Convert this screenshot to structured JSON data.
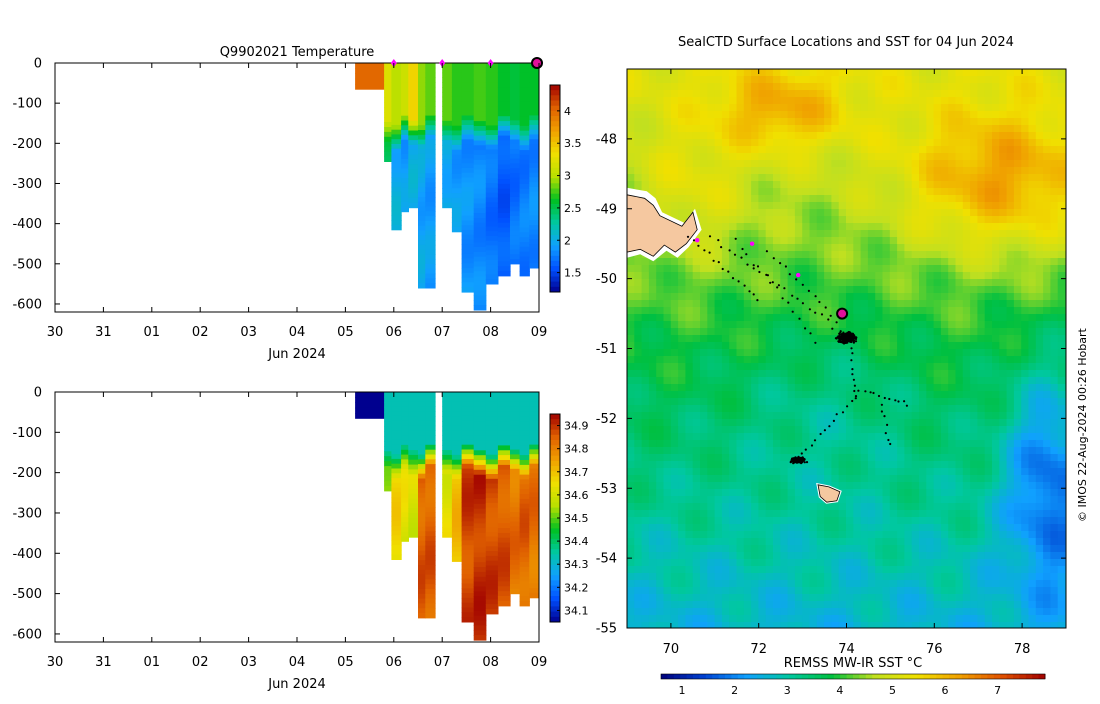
{
  "colors": {
    "temp_scale": [
      "#00008f",
      "#0050ff",
      "#10a0ff",
      "#00c8a0",
      "#00c020",
      "#b8e000",
      "#f0e000",
      "#f0a000",
      "#e06000",
      "#a00000"
    ],
    "sst_scale": [
      "#00007a",
      "#0040d0",
      "#10a0ff",
      "#00c8a0",
      "#00c040",
      "#c0e020",
      "#f0e000",
      "#f0a000",
      "#e05000",
      "#a00000"
    ],
    "land": "#f5c8a0",
    "track_marker": "#ff00ff",
    "current_marker": "#e0109a"
  },
  "chart_data": [
    {
      "id": "temperature_section",
      "type": "heatmap",
      "title": "Q9902021  Temperature",
      "xlabel": "Jun 2024",
      "x_ticks": [
        "30",
        "31",
        "01",
        "02",
        "03",
        "04",
        "05",
        "06",
        "07",
        "08",
        "09"
      ],
      "y_ticks": [
        "0",
        "-100",
        "-200",
        "-300",
        "-400",
        "-500",
        "-600"
      ],
      "ylim": [
        -620,
        0
      ],
      "colorbar_ticks": [
        "4",
        "3.5",
        "3",
        "2.5",
        "2",
        "1.5"
      ],
      "colorbar_range": [
        1.2,
        4.4
      ],
      "profile_top_markers": [
        "06",
        "07",
        "08"
      ],
      "profiles": [
        {
          "t": 5.2,
          "t2": 5.8,
          "depth": 65,
          "mixed": 4.0,
          "deep": 4.0
        },
        {
          "t": 5.8,
          "t2": 5.95,
          "depth": 245,
          "mixed": 3.2,
          "deep": 2.5
        },
        {
          "t": 5.95,
          "t2": 6.15,
          "depth": 415,
          "mixed": 3.0,
          "deep": 2.0
        },
        {
          "t": 6.15,
          "t2": 6.3,
          "depth": 370,
          "mixed": 3.1,
          "deep": 1.9
        },
        {
          "t": 6.3,
          "t2": 6.5,
          "depth": 360,
          "mixed": 3.4,
          "deep": 2.0
        },
        {
          "t": 6.5,
          "t2": 6.65,
          "depth": 560,
          "mixed": 2.9,
          "deep": 1.95
        },
        {
          "t": 6.65,
          "t2": 6.85,
          "depth": 560,
          "mixed": 2.8,
          "deep": 1.9
        },
        {
          "t": 7.0,
          "t2": 7.2,
          "depth": 360,
          "mixed": 2.8,
          "deep": 2.0
        },
        {
          "t": 7.2,
          "t2": 7.4,
          "depth": 420,
          "mixed": 2.7,
          "deep": 1.9
        },
        {
          "t": 7.4,
          "t2": 7.65,
          "depth": 570,
          "mixed": 2.7,
          "deep": 1.85
        },
        {
          "t": 7.65,
          "t2": 7.9,
          "depth": 615,
          "mixed": 2.75,
          "deep": 1.8
        },
        {
          "t": 7.9,
          "t2": 8.15,
          "depth": 550,
          "mixed": 2.7,
          "deep": 1.7
        },
        {
          "t": 8.15,
          "t2": 8.4,
          "depth": 530,
          "mixed": 2.6,
          "deep": 1.6
        },
        {
          "t": 8.4,
          "t2": 8.6,
          "depth": 500,
          "mixed": 2.55,
          "deep": 1.7
        },
        {
          "t": 8.6,
          "t2": 8.8,
          "depth": 530,
          "mixed": 2.6,
          "deep": 1.75
        },
        {
          "t": 8.8,
          "t2": 8.98,
          "depth": 510,
          "mixed": 2.6,
          "deep": 1.8
        }
      ]
    },
    {
      "id": "salinity_section",
      "type": "heatmap",
      "title": "",
      "xlabel": "Jun 2024",
      "x_ticks": [
        "30",
        "31",
        "01",
        "02",
        "03",
        "04",
        "05",
        "06",
        "07",
        "08",
        "09"
      ],
      "y_ticks": [
        "0",
        "-100",
        "-200",
        "-300",
        "-400",
        "-500",
        "-600"
      ],
      "ylim": [
        -620,
        0
      ],
      "colorbar_ticks": [
        "34.9",
        "34.8",
        "34.7",
        "34.6",
        "34.5",
        "34.4",
        "34.3",
        "34.2",
        "34.1"
      ],
      "colorbar_range": [
        34.05,
        34.95
      ],
      "profiles": [
        {
          "t": 5.2,
          "t2": 5.8,
          "depth": 65,
          "mixed": 34.05,
          "deep": 34.05
        },
        {
          "t": 5.8,
          "t2": 5.95,
          "depth": 245,
          "mixed": 34.33,
          "deep": 34.55
        },
        {
          "t": 5.95,
          "t2": 6.15,
          "depth": 415,
          "mixed": 34.33,
          "deep": 34.66
        },
        {
          "t": 6.15,
          "t2": 6.3,
          "depth": 370,
          "mixed": 34.33,
          "deep": 34.62
        },
        {
          "t": 6.3,
          "t2": 6.5,
          "depth": 360,
          "mixed": 34.33,
          "deep": 34.6
        },
        {
          "t": 6.5,
          "t2": 6.65,
          "depth": 560,
          "mixed": 34.33,
          "deep": 34.85
        },
        {
          "t": 6.65,
          "t2": 6.85,
          "depth": 560,
          "mixed": 34.33,
          "deep": 34.85
        },
        {
          "t": 7.0,
          "t2": 7.2,
          "depth": 360,
          "mixed": 34.33,
          "deep": 34.62
        },
        {
          "t": 7.2,
          "t2": 7.4,
          "depth": 420,
          "mixed": 34.33,
          "deep": 34.7
        },
        {
          "t": 7.4,
          "t2": 7.65,
          "depth": 570,
          "mixed": 34.33,
          "deep": 34.88
        },
        {
          "t": 7.65,
          "t2": 7.9,
          "depth": 615,
          "mixed": 34.33,
          "deep": 34.9
        },
        {
          "t": 7.9,
          "t2": 8.15,
          "depth": 550,
          "mixed": 34.33,
          "deep": 34.88
        },
        {
          "t": 8.15,
          "t2": 8.4,
          "depth": 530,
          "mixed": 34.33,
          "deep": 34.86
        },
        {
          "t": 8.4,
          "t2": 8.6,
          "depth": 500,
          "mixed": 34.33,
          "deep": 34.82
        },
        {
          "t": 8.6,
          "t2": 8.8,
          "depth": 530,
          "mixed": 34.33,
          "deep": 34.84
        },
        {
          "t": 8.8,
          "t2": 8.98,
          "depth": 510,
          "mixed": 34.33,
          "deep": 34.82
        }
      ]
    },
    {
      "id": "sst_map",
      "type": "heatmap",
      "title": "SealCTD Surface Locations and SST for 04 Jun 2024",
      "x_ticks": [
        "70",
        "72",
        "74",
        "76",
        "78"
      ],
      "y_ticks": [
        "-48",
        "-49",
        "-50",
        "-51",
        "-52",
        "-53",
        "-54",
        "-55"
      ],
      "xlim": [
        69,
        79
      ],
      "ylim": [
        -55,
        -47
      ],
      "colorbar_label": "REMSS MW-IR SST °C",
      "colorbar_ticks": [
        "1",
        "2",
        "3",
        "4",
        "5",
        "6",
        "7"
      ],
      "colorbar_range": [
        0.6,
        7.9
      ],
      "credit": "© IMOS 22-Aug-2024 00:26 Hobart",
      "current_location": {
        "lon": 73.9,
        "lat": -50.5
      },
      "daily_locations": [
        {
          "lon": 70.6,
          "lat": -49.45
        },
        {
          "lon": 71.85,
          "lat": -49.5
        },
        {
          "lon": 72.9,
          "lat": -49.95
        }
      ],
      "clusters": [
        {
          "lon": 74.0,
          "lat": -50.85
        },
        {
          "lon": 72.9,
          "lat": -52.6
        }
      ]
    }
  ]
}
